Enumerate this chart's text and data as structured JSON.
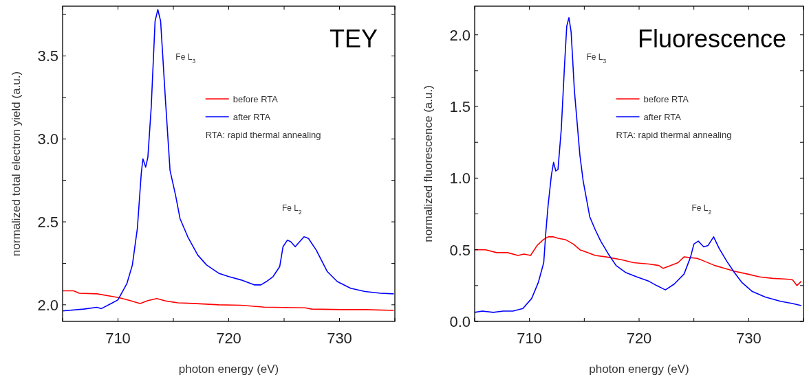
{
  "chart_data": [
    {
      "type": "line",
      "title": "TEY",
      "xlabel": "photon energy (eV)",
      "ylabel": "normalized total electron yield (a.u.)",
      "xlim": [
        705,
        735
      ],
      "xticks": [
        {
          "value": 705,
          "label": null
        },
        710,
        {
          "value": 715,
          "label": null
        },
        720,
        {
          "value": 725,
          "label": null
        },
        730,
        {
          "value": 735,
          "label": null
        }
      ],
      "ylim": [
        1.9,
        3.8
      ],
      "yticks": [
        {
          "value": 2.0,
          "label": "2.0"
        },
        {
          "value": 2.25,
          "label": null
        },
        2.5,
        {
          "value": 2.75,
          "label": null
        },
        {
          "value": 3.0,
          "label": "3.0"
        },
        {
          "value": 3.25,
          "label": null
        },
        3.5,
        {
          "value": 3.75,
          "label": null
        }
      ],
      "legend": "top right",
      "grid": false,
      "annotations": [
        "Fe L$_{3}$",
        "Fe L$_{2}$",
        "RTA: rapid thermal annealing"
      ],
      "series": [
        {
          "name": "before RTA",
          "color": "#ff0000",
          "x": [
            705,
            706,
            706.5,
            708.1,
            709.5,
            710.1,
            711.1,
            712,
            712.7,
            713.5,
            714.3,
            715.4,
            716.8,
            719.1,
            721.1,
            723.2,
            726.9,
            727.5,
            730.3,
            732.3,
            734.9
          ],
          "values": [
            2.084,
            2.084,
            2.07,
            2.066,
            2.05,
            2.043,
            2.025,
            2.008,
            2.025,
            2.038,
            2.023,
            2.012,
            2.008,
            2.0,
            1.997,
            1.986,
            1.982,
            1.974,
            1.971,
            1.971,
            1.966
          ]
        },
        {
          "name": "after RTA",
          "color": "#0000ff",
          "x": [
            705,
            706.9,
            708.1,
            708.5,
            709.5,
            710,
            710.8,
            711.3,
            711.75,
            712.1,
            712.25,
            712.5,
            712.7,
            713,
            713.35,
            713.6,
            713.85,
            714.3,
            714.7,
            715.2,
            715.6,
            716.3,
            717.2,
            718,
            719.1,
            720,
            721.1,
            722.3,
            722.9,
            723.4,
            724,
            724.6,
            724.9,
            725.3,
            725.6,
            726,
            726.4,
            726.8,
            727.2,
            727.9,
            728.9,
            729.8,
            731,
            732.3,
            733.7,
            734.9
          ],
          "values": [
            1.963,
            1.974,
            1.985,
            1.977,
            2.012,
            2.03,
            2.127,
            2.24,
            2.46,
            2.79,
            2.88,
            2.83,
            2.89,
            3.19,
            3.71,
            3.78,
            3.71,
            3.22,
            2.81,
            2.66,
            2.52,
            2.41,
            2.3,
            2.24,
            2.19,
            2.17,
            2.15,
            2.12,
            2.12,
            2.14,
            2.17,
            2.23,
            2.35,
            2.39,
            2.38,
            2.35,
            2.38,
            2.41,
            2.4,
            2.33,
            2.2,
            2.14,
            2.1,
            2.08,
            2.07,
            2.066
          ]
        }
      ]
    },
    {
      "type": "line",
      "title": "Fluorescence",
      "xlabel": "photon energy (eV)",
      "ylabel": "normalized fluorescence (a.u.)",
      "xlim": [
        705,
        735
      ],
      "xticks": [
        {
          "value": 705,
          "label": null
        },
        710,
        {
          "value": 715,
          "label": null
        },
        720,
        {
          "value": 725,
          "label": null
        },
        730,
        {
          "value": 735,
          "label": null
        }
      ],
      "ylim": [
        0,
        2.2
      ],
      "yticks": [
        {
          "value": 0,
          "label": "0.0"
        },
        {
          "value": 0.25,
          "label": null
        },
        0.5,
        {
          "value": 0.75,
          "label": null
        },
        {
          "value": 1.0,
          "label": "1.0"
        },
        {
          "value": 1.25,
          "label": null
        },
        1.5,
        {
          "value": 1.75,
          "label": null
        },
        {
          "value": 2.0,
          "label": "2.0"
        }
      ],
      "legend": "top right",
      "grid": false,
      "annotations": [
        "Fe L$_{3}$",
        "Fe L$_{2}$",
        "RTA: rapid thermal annealing"
      ],
      "series": [
        {
          "name": "before RTA",
          "color": "#ff0000",
          "x": [
            705,
            706,
            707,
            708,
            708.95,
            709.5,
            710.1,
            710.7,
            711.25,
            711.7,
            712.2,
            712.6,
            713.3,
            714,
            714.6,
            715.3,
            716,
            717,
            718.4,
            719.5,
            720.9,
            721.8,
            722.2,
            722.7,
            723.55,
            724.1,
            725.3,
            725.95,
            726.9,
            727.8,
            728.7,
            729.9,
            731,
            732.2,
            733.5,
            734,
            734.4,
            734.8
          ],
          "values": [
            0.5,
            0.5,
            0.48,
            0.48,
            0.46,
            0.47,
            0.46,
            0.53,
            0.57,
            0.59,
            0.59,
            0.58,
            0.57,
            0.54,
            0.5,
            0.48,
            0.46,
            0.45,
            0.43,
            0.41,
            0.4,
            0.39,
            0.37,
            0.385,
            0.41,
            0.45,
            0.44,
            0.42,
            0.39,
            0.37,
            0.35,
            0.33,
            0.31,
            0.3,
            0.295,
            0.29,
            0.25,
            0.28
          ]
        },
        {
          "name": "after RTA",
          "color": "#0000ff",
          "x": [
            705,
            705.7,
            706.7,
            707.6,
            708.5,
            709.4,
            710.2,
            710.8,
            711.3,
            711.5,
            711.7,
            712,
            712.2,
            712.4,
            712.6,
            712.9,
            713.2,
            713.4,
            713.6,
            713.8,
            714.1,
            714.6,
            714.9,
            715.5,
            716,
            716.5,
            717.2,
            717.9,
            718.8,
            719.8,
            720.9,
            721.6,
            722.4,
            723.2,
            724.1,
            724.7,
            725,
            725.4,
            725.9,
            726.3,
            726.8,
            727.3,
            728,
            728.7,
            729.4,
            730.3,
            731.5,
            732.9,
            734,
            734.8
          ],
          "values": [
            0.063,
            0.072,
            0.063,
            0.072,
            0.072,
            0.09,
            0.16,
            0.27,
            0.41,
            0.63,
            0.81,
            1.02,
            1.11,
            1.05,
            1.06,
            1.34,
            1.79,
            2.06,
            2.12,
            2.02,
            1.61,
            1.16,
            0.98,
            0.73,
            0.64,
            0.56,
            0.47,
            0.39,
            0.34,
            0.31,
            0.28,
            0.25,
            0.22,
            0.26,
            0.33,
            0.45,
            0.54,
            0.56,
            0.52,
            0.53,
            0.59,
            0.51,
            0.42,
            0.34,
            0.27,
            0.21,
            0.17,
            0.14,
            0.125,
            0.11
          ]
        }
      ]
    }
  ]
}
